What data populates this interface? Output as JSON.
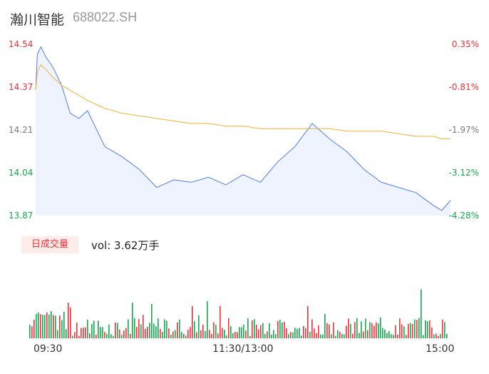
{
  "header": {
    "stock_name": "瀚川智能",
    "stock_code": "688022.SH"
  },
  "price_axis": {
    "labels": [
      "14.54",
      "14.37",
      "14.21",
      "14.04",
      "13.87"
    ],
    "pct_labels": [
      "0.35%",
      "-0.81%",
      "-1.97%",
      "-3.12%",
      "-4.28%"
    ],
    "label_colors": [
      "red",
      "red",
      "gray",
      "green",
      "green"
    ]
  },
  "volume": {
    "badge_label": "日成交量",
    "vol_text": "vol: 3.62万手"
  },
  "time_axis": {
    "labels": [
      "09:30",
      "11:30/13:00",
      "15:00"
    ]
  },
  "colors": {
    "price_line": "#4f7fe6",
    "avg_line": "#f2b233",
    "up": "#e8313a",
    "down": "#14a84c",
    "area_fill": "#eef3fd"
  },
  "chart_data": {
    "type": "line",
    "title": "",
    "xlabel": "",
    "ylabel": "",
    "ylim": [
      13.87,
      14.54
    ],
    "x": [
      "09:30",
      "09:31",
      "09:33",
      "09:36",
      "09:40",
      "09:45",
      "09:50",
      "09:55",
      "10:00",
      "10:10",
      "10:20",
      "10:30",
      "10:40",
      "10:50",
      "11:00",
      "11:10",
      "11:20",
      "11:30/13:00",
      "13:10",
      "13:20",
      "13:30",
      "13:40",
      "13:50",
      "14:00",
      "14:10",
      "14:20",
      "14:30",
      "14:40",
      "14:50",
      "14:55",
      "15:00"
    ],
    "series": [
      {
        "values": [
          14.36,
          14.5,
          14.53,
          14.49,
          14.45,
          14.38,
          14.27,
          14.25,
          14.28,
          14.14,
          14.1,
          14.05,
          13.98,
          14.01,
          14.0,
          14.02,
          13.99,
          14.03,
          14.0,
          14.08,
          14.14,
          14.23,
          14.17,
          14.12,
          14.05,
          14.0,
          13.98,
          13.96,
          13.91,
          13.89,
          13.93
        ]
      },
      {
        "values": [
          14.36,
          14.43,
          14.46,
          14.44,
          14.41,
          14.38,
          14.36,
          14.34,
          14.32,
          14.29,
          14.27,
          14.26,
          14.25,
          14.24,
          14.23,
          14.23,
          14.22,
          14.22,
          14.21,
          14.21,
          14.21,
          14.21,
          14.21,
          14.2,
          14.2,
          14.2,
          14.19,
          14.18,
          14.18,
          14.17,
          14.17
        ]
      }
    ]
  }
}
